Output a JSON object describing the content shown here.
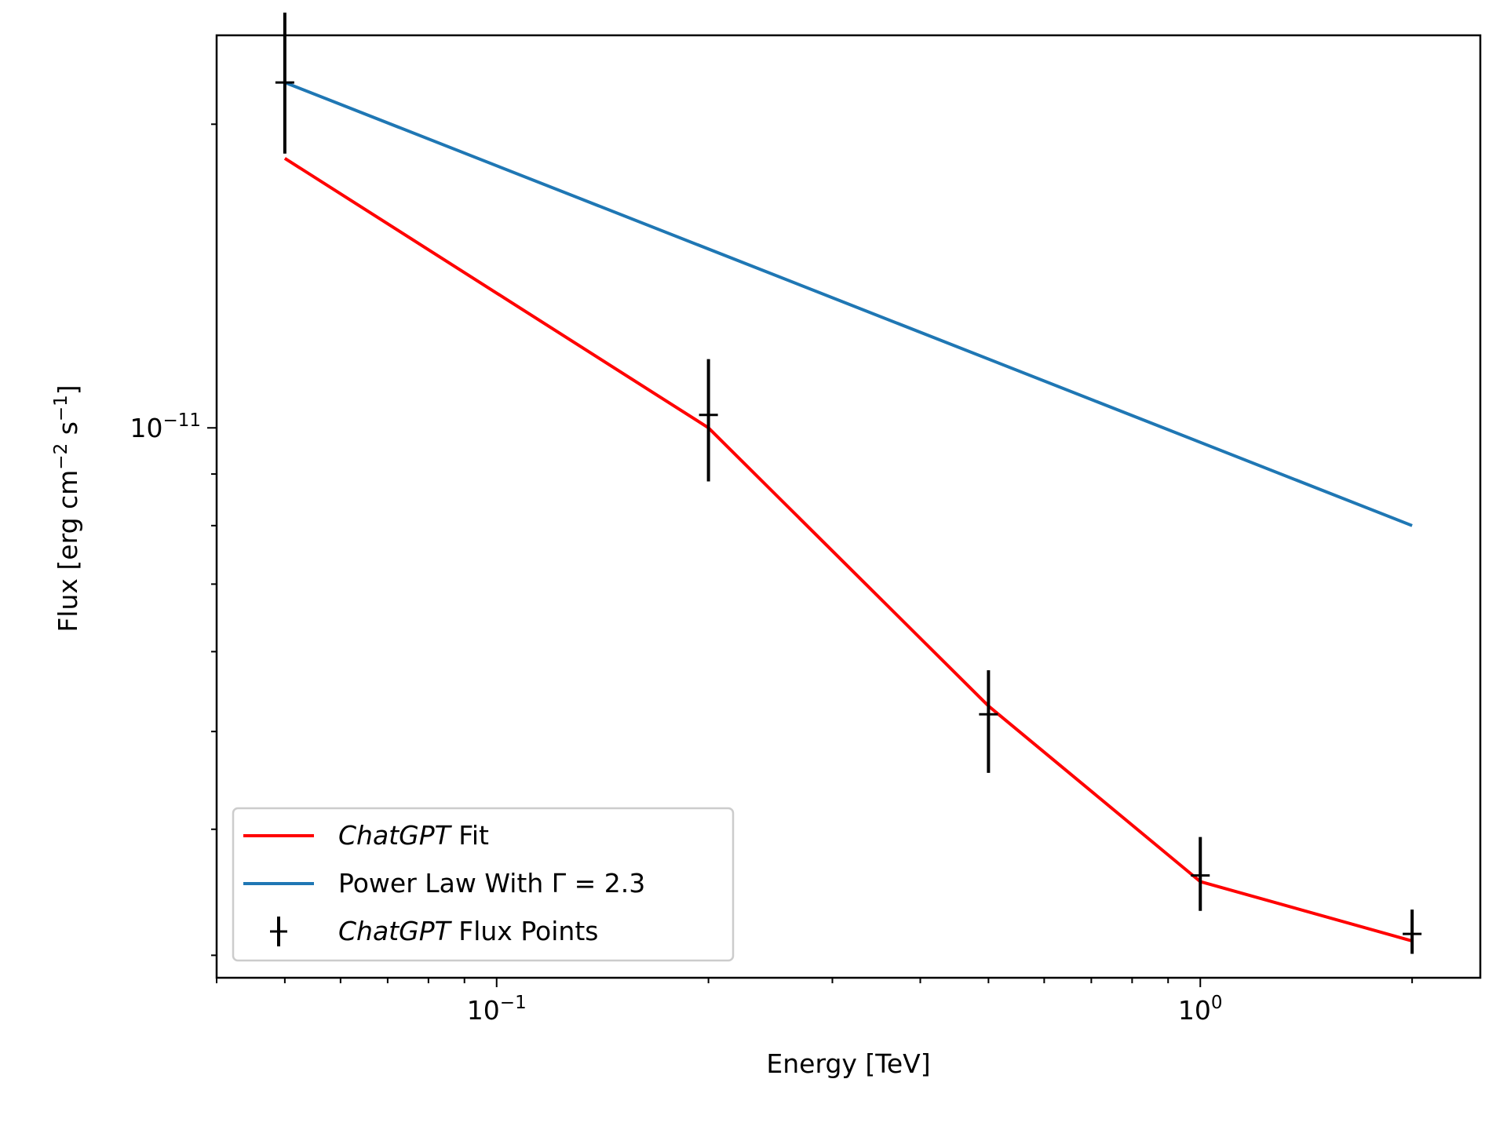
{
  "chart_data": {
    "type": "line",
    "x_scale": "log",
    "y_scale": "log",
    "xlabel": "Energy [TeV]",
    "ylabel_parts": {
      "pre": "Flux [erg cm",
      "exp1": "−2",
      "mid": " s",
      "exp2": "−1",
      "post": "]"
    },
    "xlim": [
      0.04,
      2.5
    ],
    "ylim": [
      2.85e-12,
      2.45e-11
    ],
    "x_ticks": [
      {
        "value": 0.1,
        "base": "10",
        "exp": "−1"
      },
      {
        "value": 1.0,
        "base": "10",
        "exp": "0"
      }
    ],
    "y_ticks": [
      {
        "value": 1e-11,
        "base": "10",
        "exp": "−11"
      }
    ],
    "series": [
      {
        "name": "ChatGPT Fit",
        "name_italic": "ChatGPT",
        "name_rest": " Fit",
        "kind": "line",
        "color": "#ff0000",
        "x": [
          0.05,
          0.2,
          0.5,
          1.0,
          2.0
        ],
        "y": [
          1.85e-11,
          1e-11,
          5.3e-12,
          3.55e-12,
          3.1e-12
        ]
      },
      {
        "name": "Power Law With Γ = 2.3",
        "name_plain": "Power Law With Γ = 2.3",
        "kind": "line",
        "color": "#1f77b4",
        "x": [
          0.05,
          2.0
        ],
        "y": [
          2.2e-11,
          8e-12
        ]
      },
      {
        "name": "ChatGPT Flux Points",
        "name_italic": "ChatGPT",
        "name_rest": " Flux Points",
        "kind": "errorbar",
        "color": "#000000",
        "x": [
          0.05,
          0.2,
          0.5,
          1.0,
          2.0
        ],
        "y": [
          2.2e-11,
          1.03e-11,
          5.2e-12,
          3.6e-12,
          3.15e-12
        ],
        "y_low": [
          1.87e-11,
          8.85e-12,
          4.55e-12,
          3.32e-12,
          3.01e-12
        ],
        "y_high": [
          2.58e-11,
          1.17e-11,
          5.75e-12,
          3.93e-12,
          3.33e-12
        ]
      }
    ],
    "legend_position": "lower-left"
  }
}
